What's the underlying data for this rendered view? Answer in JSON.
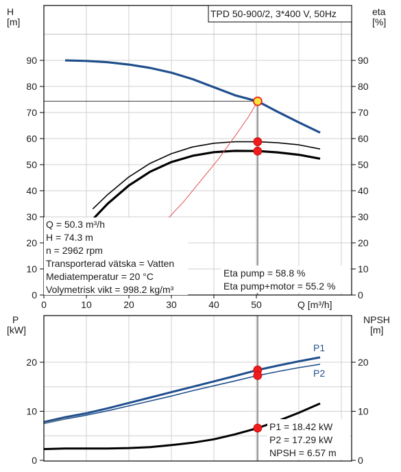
{
  "chart_data": [
    {
      "type": "line",
      "panel": "pump-curve",
      "title_box": "TPD 50-900/2, 3*400 V, 50Hz",
      "left_axis": {
        "symbol": "H",
        "unit": "[m]",
        "ylim": [
          0,
          100
        ],
        "ticks": [
          0,
          10,
          20,
          30,
          40,
          50,
          60,
          70,
          80,
          90
        ]
      },
      "right_axis": {
        "symbol": "eta",
        "unit": "[%]",
        "ylim": [
          0,
          100
        ],
        "ticks": [
          0,
          10,
          20,
          30,
          40,
          50,
          60,
          70,
          80,
          90
        ]
      },
      "x_axis": {
        "label": "Q [m³/h]",
        "xlim": [
          0,
          70
        ],
        "ticks": [
          0,
          10,
          20,
          30,
          40,
          50
        ]
      },
      "grid": true,
      "series": [
        {
          "role": "head",
          "color": "#1f4e8c",
          "x": [
            5,
            10,
            15,
            20,
            25,
            30,
            35,
            40,
            45,
            50.3,
            55,
            60,
            65
          ],
          "y": [
            90,
            89.8,
            89.3,
            88.4,
            87.1,
            85.3,
            82.8,
            79.7,
            76.6,
            74.3,
            70.3,
            66.2,
            62.3
          ]
        },
        {
          "role": "eta-pump",
          "color": "#000000",
          "x": [
            11.5,
            15,
            20,
            25,
            30,
            35,
            40,
            45,
            50.3,
            55,
            60,
            65
          ],
          "y": [
            33,
            38.5,
            45.3,
            50.5,
            54.2,
            56.8,
            58.2,
            58.8,
            58.8,
            58.4,
            57.6,
            56
          ]
        },
        {
          "role": "eta-pump-motor",
          "color": "#000000",
          "x": [
            11.5,
            15,
            20,
            25,
            30,
            35,
            40,
            45,
            50.3,
            55,
            60,
            65
          ],
          "y": [
            29,
            35,
            42,
            47.3,
            51,
            53.4,
            54.8,
            55.3,
            55.2,
            54.7,
            53.8,
            52.3
          ]
        },
        {
          "role": "system",
          "color": "#e05050",
          "x": [
            29,
            33,
            37,
            41,
            45,
            48,
            50.3
          ],
          "y": [
            29,
            36,
            44,
            52,
            61,
            68,
            74.3
          ]
        }
      ],
      "operating_point": {
        "Q": 50.3,
        "H": 74.3,
        "eta_pump": 58.8,
        "eta_pump_motor": 55.2
      },
      "info_lines": [
        "Q = 50.3 m³/h",
        "H = 74.3 m",
        "n = 2962 rpm",
        "Transporterad vätska = Vatten",
        "Mediatemperatur = 20 °C",
        "Volymetrisk vikt = 998.2 kg/m³"
      ],
      "eta_lines": [
        "Eta pump = 58.8 %",
        "Eta pump+motor = 55.2 %"
      ]
    },
    {
      "type": "line",
      "panel": "power-npsh",
      "left_axis": {
        "symbol": "P",
        "unit": "[kW]",
        "ylim": [
          0,
          25
        ],
        "ticks": [
          0,
          10,
          20
        ]
      },
      "right_axis": {
        "symbol": "NPSH",
        "unit": "[m]",
        "ylim": [
          0,
          25
        ],
        "ticks": [
          0,
          10,
          20
        ]
      },
      "x_axis": {
        "xlim": [
          0,
          70
        ]
      },
      "grid": true,
      "series": [
        {
          "name": "P1",
          "color": "#1f4e8c",
          "x": [
            0,
            5,
            10,
            15,
            20,
            25,
            30,
            35,
            40,
            45,
            50.3,
            55,
            60,
            65
          ],
          "y": [
            7.8,
            8.8,
            9.6,
            10.6,
            11.7,
            12.8,
            13.9,
            15,
            16.1,
            17.2,
            18.42,
            19.3,
            20.2,
            21
          ]
        },
        {
          "name": "P2",
          "color": "#1f4e8c",
          "x": [
            0,
            5,
            10,
            15,
            20,
            25,
            30,
            35,
            40,
            45,
            50.3,
            55,
            60,
            65
          ],
          "y": [
            7.5,
            8.4,
            9.2,
            10.1,
            11.1,
            12.1,
            13.1,
            14.2,
            15.2,
            16.2,
            17.29,
            18.1,
            18.9,
            19.6
          ]
        },
        {
          "role": "npsh",
          "color": "#000000",
          "x": [
            0,
            5,
            10,
            15,
            20,
            25,
            30,
            35,
            40,
            45,
            50.3,
            55,
            60,
            65
          ],
          "y": [
            2.3,
            2.4,
            2.4,
            2.4,
            2.5,
            2.7,
            3.1,
            3.6,
            4.3,
            5.3,
            6.57,
            8.0,
            9.7,
            11.6
          ]
        }
      ],
      "operating_point": {
        "Q": 50.3,
        "P1": 18.42,
        "P2": 17.29,
        "NPSH": 6.57
      },
      "info_lines": [
        "P1 = 18.42 kW",
        "P2 = 17.29 kW",
        "NPSH = 6.57 m"
      ]
    }
  ]
}
